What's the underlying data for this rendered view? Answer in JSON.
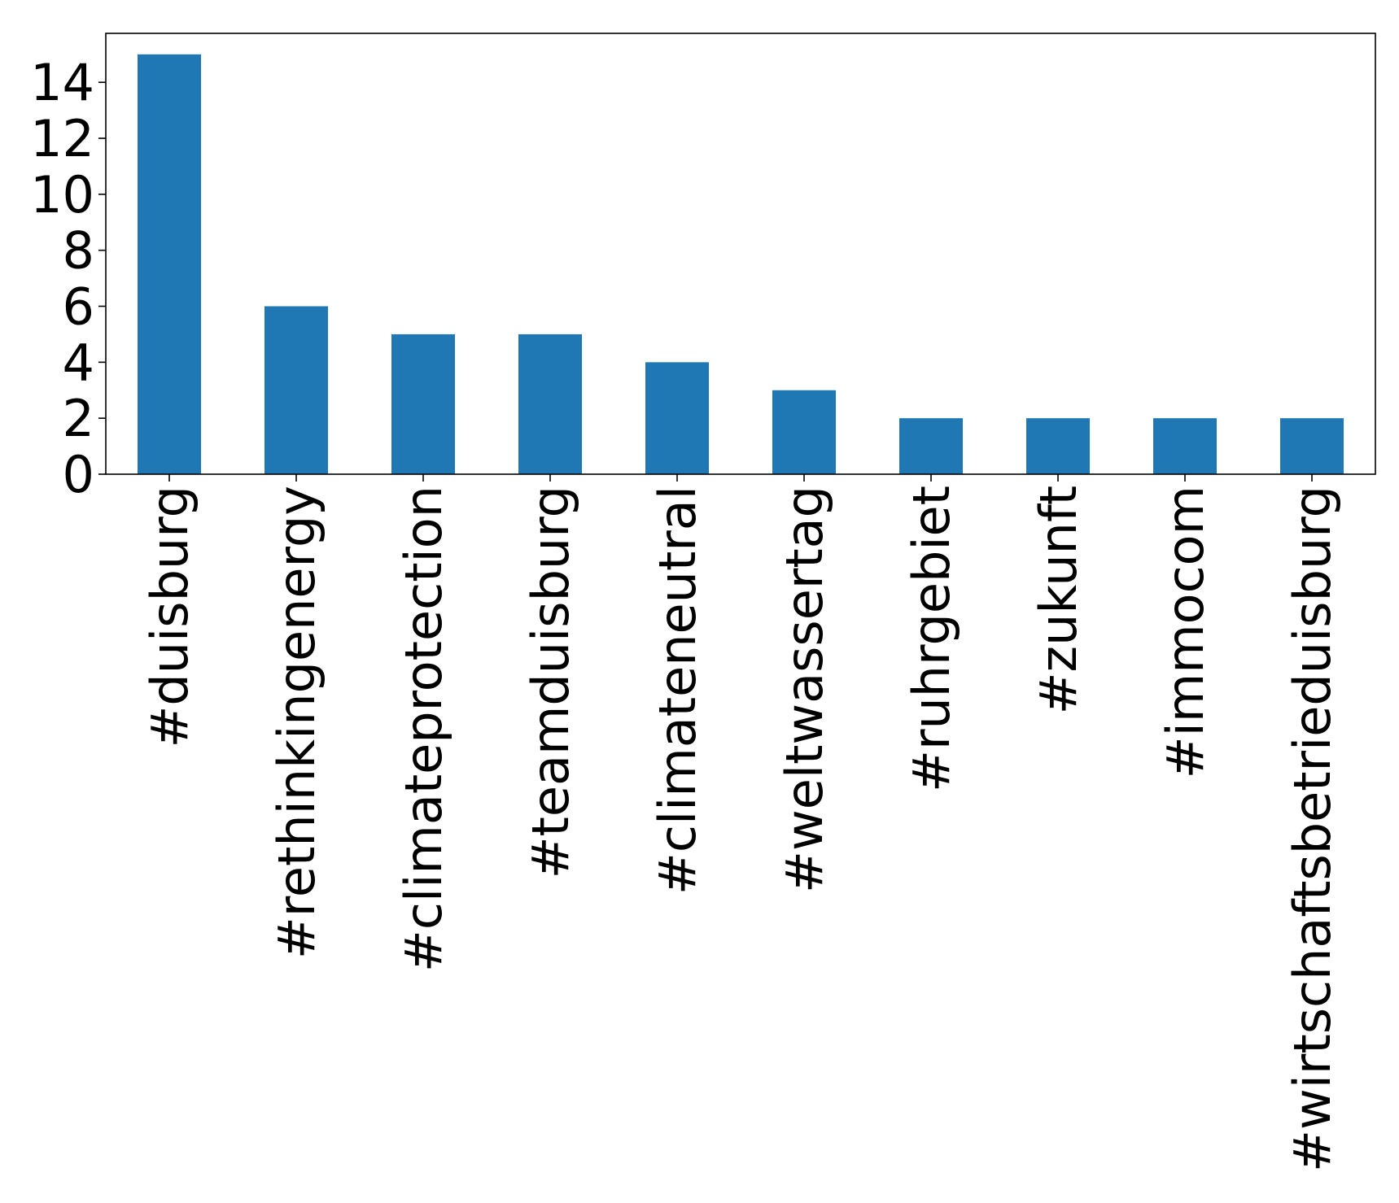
{
  "chart_data": {
    "type": "bar",
    "categories": [
      "#duisburg",
      "#rethinkingenergy",
      "#climateprotection",
      "#teamduisburg",
      "#climateneutral",
      "#weltwassertag",
      "#ruhrgebiet",
      "#zukunft",
      "#immocom",
      "#wirtschaftsbetrieduisburg"
    ],
    "values": [
      15,
      6,
      5,
      5,
      4,
      3,
      2,
      2,
      2,
      2
    ],
    "title": "",
    "xlabel": "",
    "ylabel": "",
    "ylim": [
      0,
      15.75
    ],
    "yticks": [
      0,
      2,
      4,
      6,
      8,
      10,
      12,
      14
    ],
    "bar_color": "#1f77b4",
    "grid": false,
    "legend": "none"
  }
}
